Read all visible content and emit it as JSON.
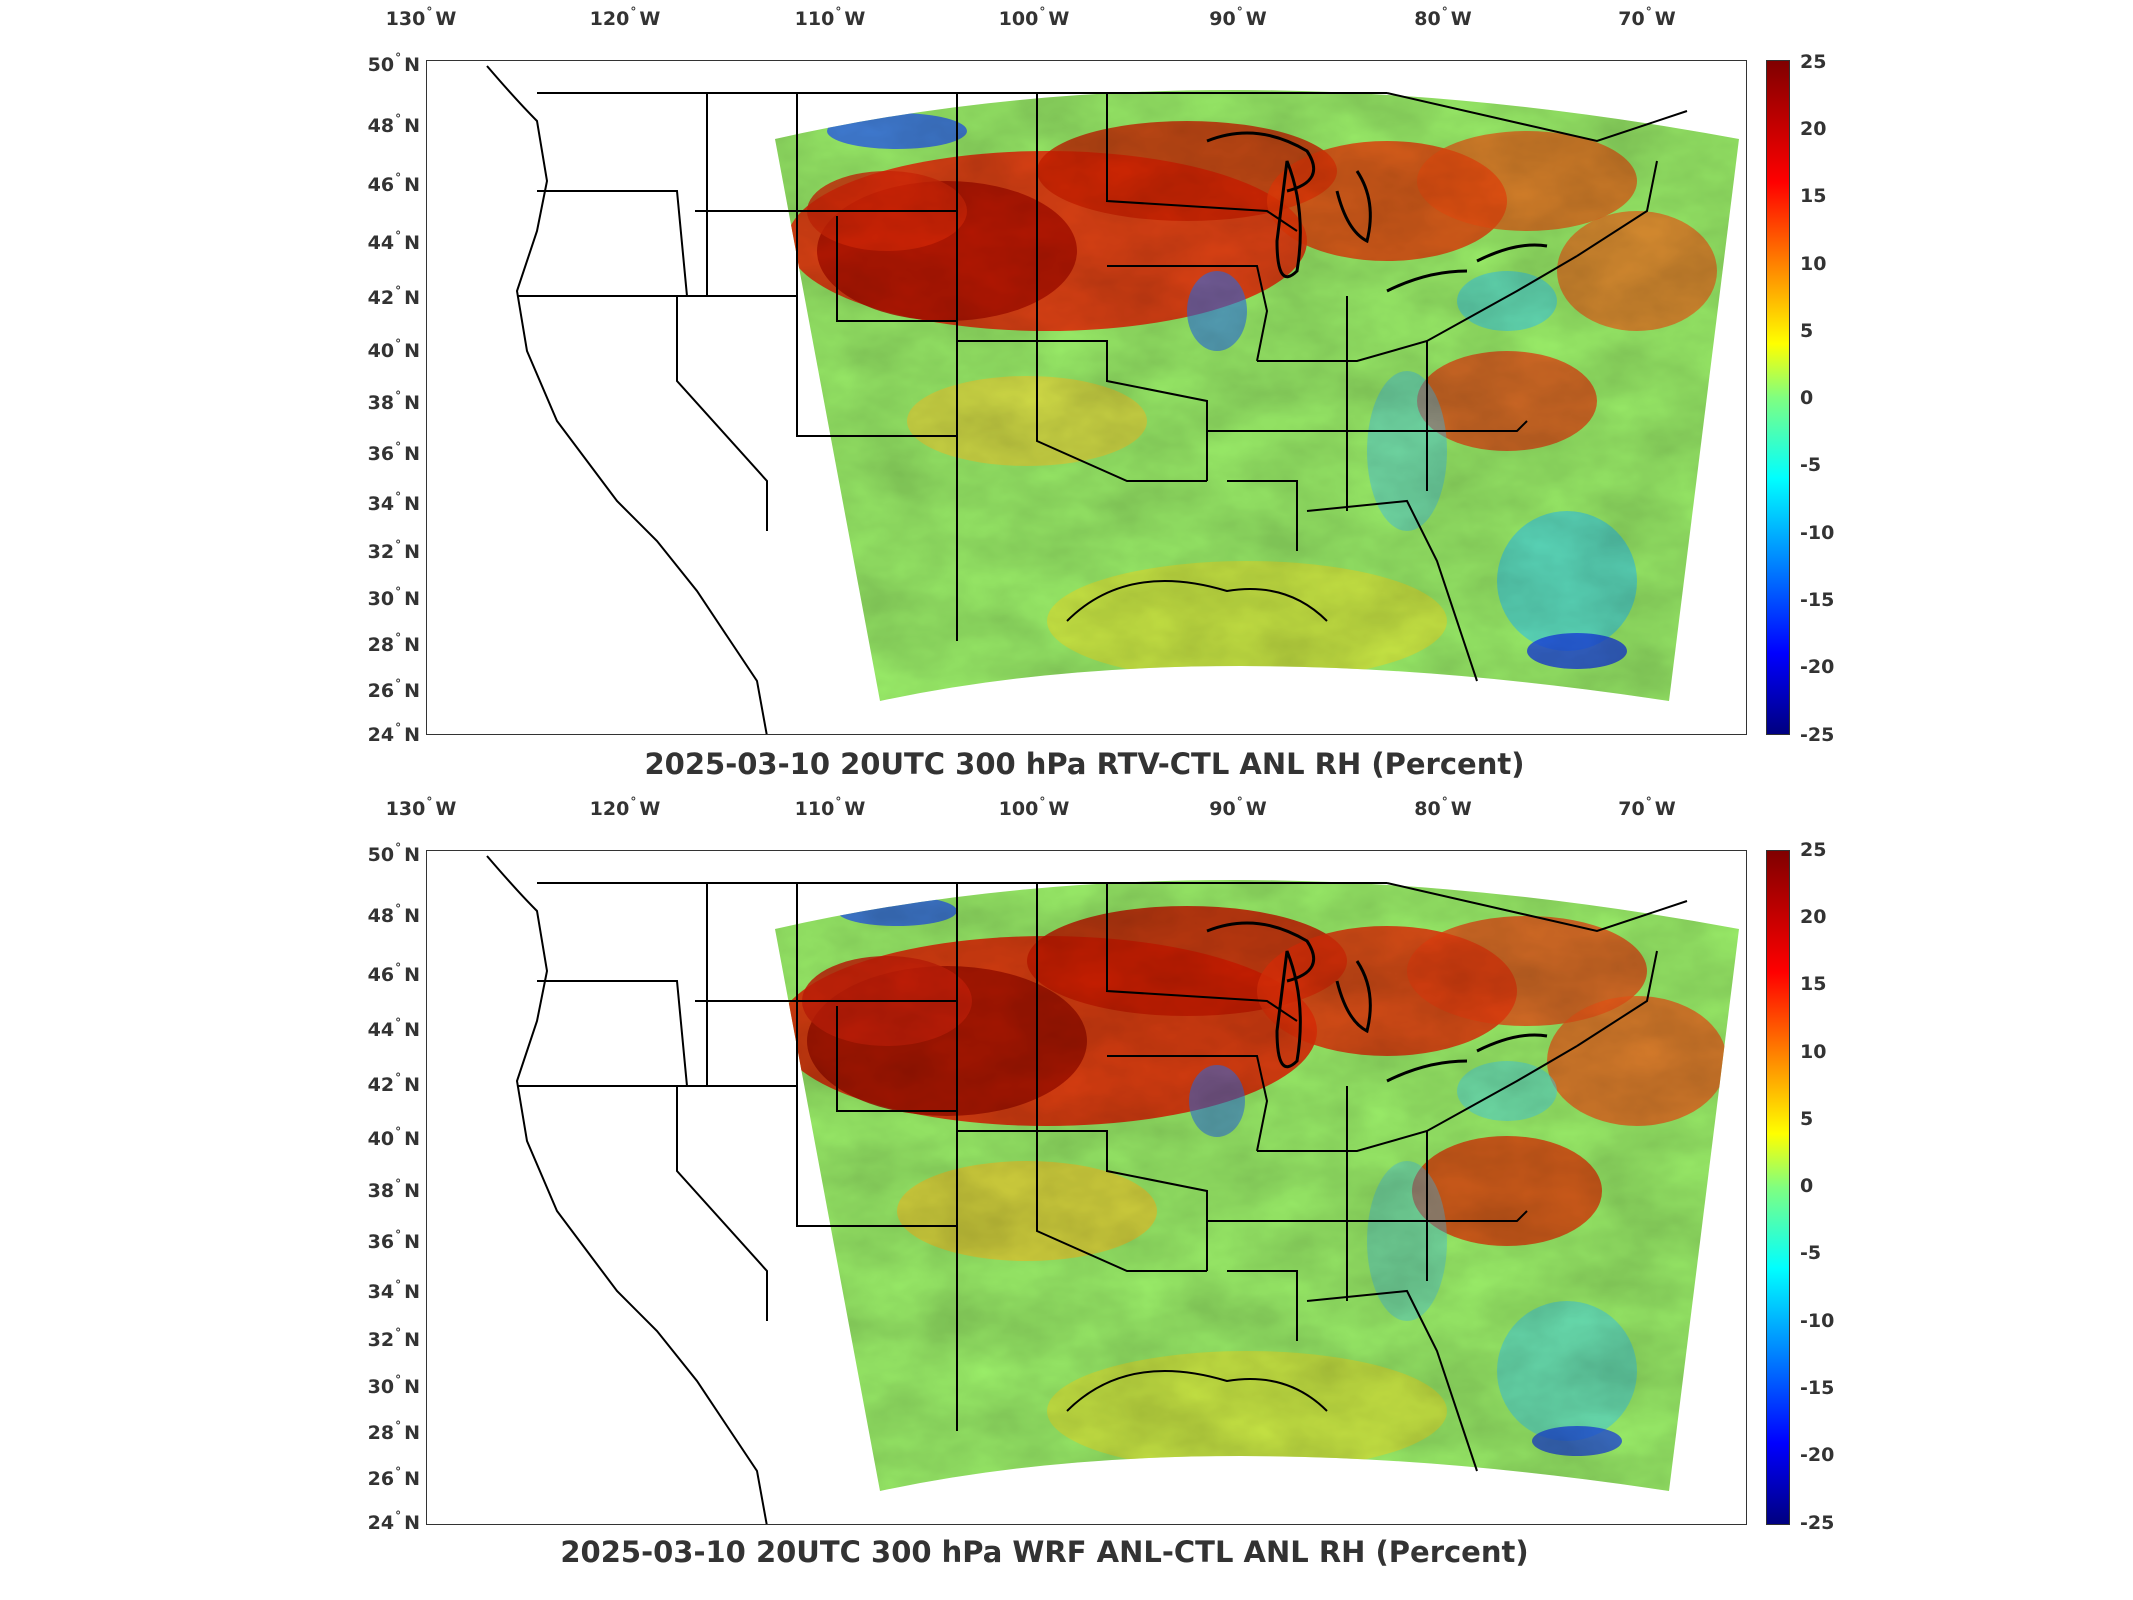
{
  "figure": {
    "panels": [
      {
        "title": "2025-03-10 20UTC 300 hPa RTV-CTL ANL RH (Percent)",
        "lon_ticks": [
          "130",
          "120",
          "110",
          "100",
          "90",
          "80",
          "70"
        ],
        "lon_hemi": "W",
        "lat_ticks": [
          "50",
          "48",
          "46",
          "44",
          "42",
          "40",
          "38",
          "36",
          "34",
          "32",
          "30",
          "28",
          "26",
          "24"
        ],
        "lat_hemi": "N",
        "colorbar_ticks": [
          "25",
          "20",
          "15",
          "10",
          "5",
          "0",
          "-5",
          "-10",
          "-15",
          "-20",
          "-25"
        ]
      },
      {
        "title": "2025-03-10 20UTC 300 hPa WRF ANL-CTL ANL RH (Percent)",
        "lon_ticks": [
          "130",
          "120",
          "110",
          "100",
          "90",
          "80",
          "70"
        ],
        "lon_hemi": "W",
        "lat_ticks": [
          "50",
          "48",
          "46",
          "44",
          "42",
          "40",
          "38",
          "36",
          "34",
          "32",
          "30",
          "28",
          "26",
          "24"
        ],
        "lat_hemi": "N",
        "colorbar_ticks": [
          "25",
          "20",
          "15",
          "10",
          "5",
          "0",
          "-5",
          "-10",
          "-15",
          "-20",
          "-25"
        ]
      }
    ],
    "colormap": {
      "name": "jet",
      "min": -25,
      "max": 25,
      "colors": [
        "#000080",
        "#0000ff",
        "#0080ff",
        "#00ffff",
        "#80ff80",
        "#ffff00",
        "#ff8000",
        "#ff0000",
        "#800000"
      ]
    }
  }
}
